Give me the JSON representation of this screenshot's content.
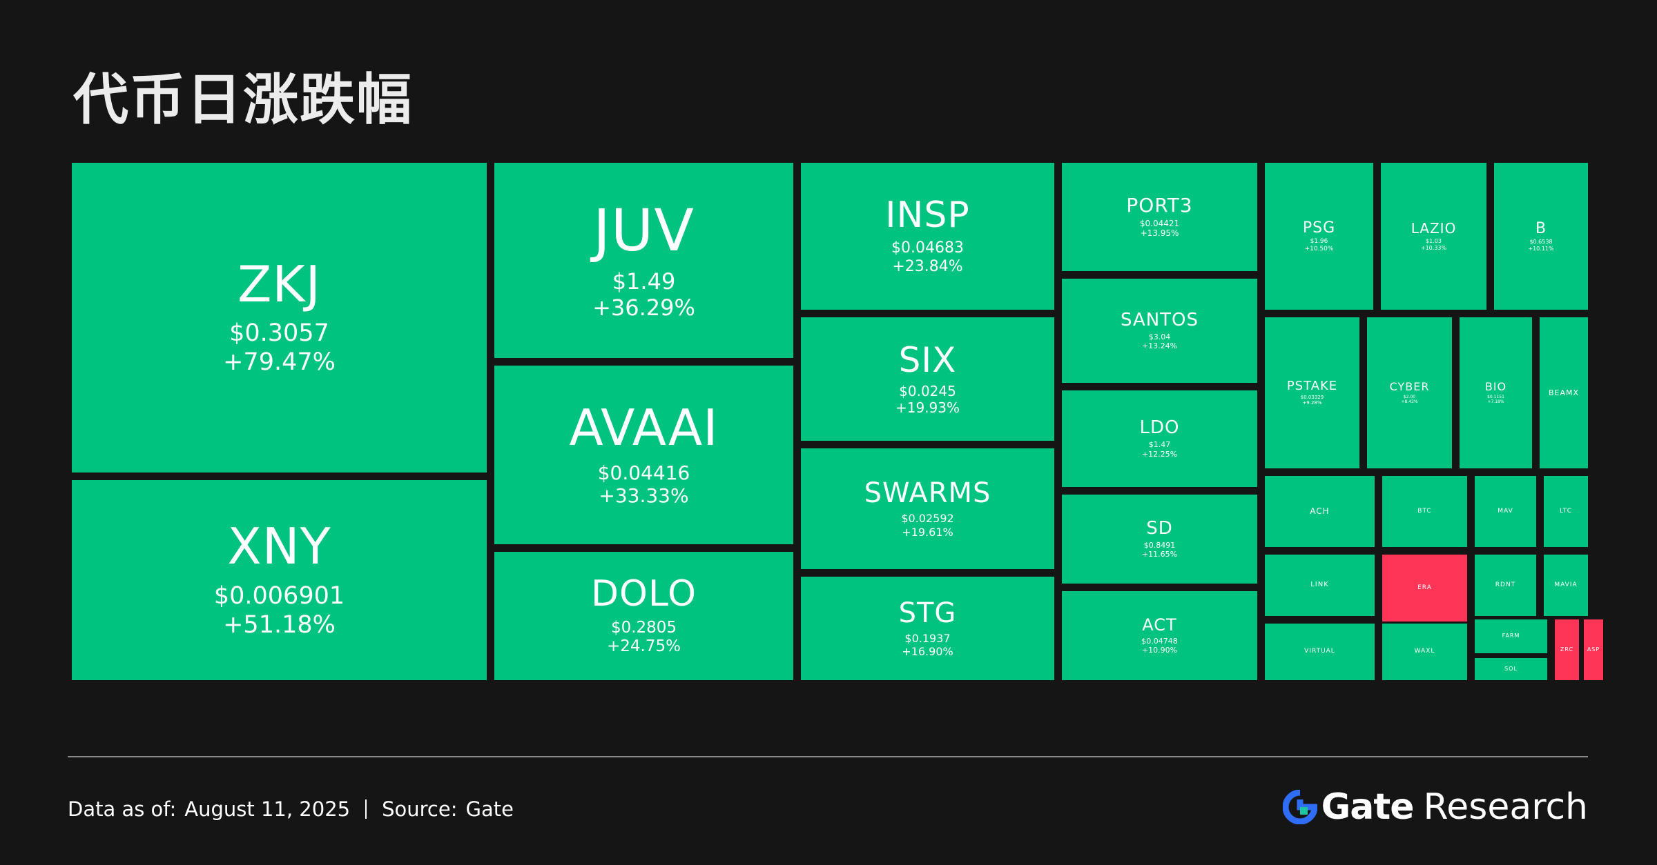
{
  "title": "代币日涨跌幅",
  "footer": {
    "date_label": "Data as of:",
    "date_value": "August 11, 2025",
    "source_label": "Source:",
    "source_value": "Gate"
  },
  "brand": {
    "name": "Gate",
    "suffix": "Research",
    "logo_icon": "gate-logo-icon"
  },
  "colors": {
    "up": "#00c37f",
    "down": "#ff3558",
    "background": "#151515"
  },
  "chart_data": {
    "type": "treemap",
    "title": "代币日涨跌幅",
    "items": [
      {
        "symbol": "ZKJ",
        "price": "$0.3057",
        "change": "+79.47%",
        "change_pct": 79.47
      },
      {
        "symbol": "XNY",
        "price": "$0.006901",
        "change": "+51.18%",
        "change_pct": 51.18
      },
      {
        "symbol": "JUV",
        "price": "$1.49",
        "change": "+36.29%",
        "change_pct": 36.29
      },
      {
        "symbol": "AVAAI",
        "price": "$0.04416",
        "change": "+33.33%",
        "change_pct": 33.33
      },
      {
        "symbol": "DOLO",
        "price": "$0.2805",
        "change": "+24.75%",
        "change_pct": 24.75
      },
      {
        "symbol": "INSP",
        "price": "$0.04683",
        "change": "+23.84%",
        "change_pct": 23.84
      },
      {
        "symbol": "SIX",
        "price": "$0.0245",
        "change": "+19.93%",
        "change_pct": 19.93
      },
      {
        "symbol": "SWARMS",
        "price": "$0.02592",
        "change": "+19.61%",
        "change_pct": 19.61
      },
      {
        "symbol": "STG",
        "price": "$0.1937",
        "change": "+16.90%",
        "change_pct": 16.9
      },
      {
        "symbol": "PORT3",
        "price": "$0.04421",
        "change": "+13.95%",
        "change_pct": 13.95
      },
      {
        "symbol": "SANTOS",
        "price": "$3.04",
        "change": "+13.24%",
        "change_pct": 13.24
      },
      {
        "symbol": "LDO",
        "price": "$1.47",
        "change": "+12.25%",
        "change_pct": 12.25
      },
      {
        "symbol": "SD",
        "price": "$0.8491",
        "change": "+11.65%",
        "change_pct": 11.65
      },
      {
        "symbol": "ACT",
        "price": "$0.04748",
        "change": "+10.90%",
        "change_pct": 10.9
      },
      {
        "symbol": "PSG",
        "price": "$1.96",
        "change": "+10.50%",
        "change_pct": 10.5
      },
      {
        "symbol": "LAZIO",
        "price": "$1.03",
        "change": "+10.33%",
        "change_pct": 10.33
      },
      {
        "symbol": "B",
        "price": "$0.6538",
        "change": "+10.11%",
        "change_pct": 10.11
      },
      {
        "symbol": "PSTAKE",
        "price": "$0.03329",
        "change": "+9.28%",
        "change_pct": 9.28
      },
      {
        "symbol": "CYBER",
        "price": "$2.00",
        "change": "+8.43%",
        "change_pct": 8.43
      },
      {
        "symbol": "BIO",
        "price": "$0.1151",
        "change": "+7.18%",
        "change_pct": 7.18
      },
      {
        "symbol": "BEAMX",
        "price": "",
        "change": "",
        "change_pct": null
      },
      {
        "symbol": "ACH",
        "price": "",
        "change": "",
        "change_pct": null
      },
      {
        "symbol": "BTC",
        "price": "",
        "change": "",
        "change_pct": null
      },
      {
        "symbol": "MAV",
        "price": "",
        "change": "",
        "change_pct": null
      },
      {
        "symbol": "LTC",
        "price": "",
        "change": "",
        "change_pct": null
      },
      {
        "symbol": "LINK",
        "price": "",
        "change": "",
        "change_pct": null
      },
      {
        "symbol": "ERA",
        "price": "",
        "change": "",
        "change_pct": null,
        "direction": "down"
      },
      {
        "symbol": "RDNT",
        "price": "",
        "change": "",
        "change_pct": null
      },
      {
        "symbol": "MAVIA",
        "price": "",
        "change": "",
        "change_pct": null
      },
      {
        "symbol": "VIRTUAL",
        "price": "",
        "change": "",
        "change_pct": null
      },
      {
        "symbol": "WAXL",
        "price": "",
        "change": "",
        "change_pct": null
      },
      {
        "symbol": "FARM",
        "price": "",
        "change": "",
        "change_pct": null
      },
      {
        "symbol": "SOL",
        "price": "",
        "change": "",
        "change_pct": null
      },
      {
        "symbol": "ZRC",
        "price": "",
        "change": "",
        "change_pct": null,
        "direction": "down"
      },
      {
        "symbol": "ASP",
        "price": "",
        "change": "",
        "change_pct": null,
        "direction": "down"
      }
    ]
  }
}
